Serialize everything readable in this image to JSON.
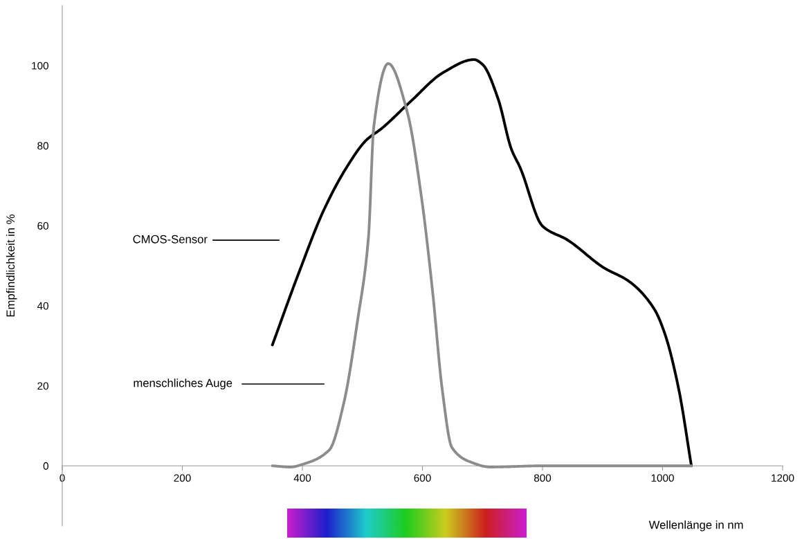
{
  "chart_data": {
    "type": "line",
    "xlabel": "Wellenlänge in nm",
    "ylabel": "Empfindlichkeit in %",
    "xlim": [
      0,
      1200
    ],
    "ylim": [
      -15,
      115
    ],
    "xticks": [
      0,
      200,
      400,
      600,
      800,
      1000,
      1200
    ],
    "yticks": [
      0,
      20,
      40,
      60,
      80,
      100
    ],
    "grid": false,
    "marker": "none",
    "line_style": "solid",
    "series": [
      {
        "name": "CMOS-Sensor",
        "color": "#000000",
        "x": [
          350,
          394,
          436,
          473,
          506,
          533,
          580,
          635,
          686,
          700,
          726,
          748,
          763,
          800,
          842,
          902,
          944,
          986,
          1004,
          1027,
          1048
        ],
        "values": [
          30.2,
          48.2,
          64,
          74.4,
          81.3,
          84.4,
          91,
          98.3,
          101.5,
          100.3,
          91.7,
          79.2,
          74.4,
          59.9,
          56.4,
          49.5,
          46.1,
          39.2,
          32.9,
          19.1,
          0
        ]
      },
      {
        "name": "menschliches Auge",
        "color": "#8c8c8c",
        "x": [
          350,
          380,
          403,
          445,
          469,
          492,
          510,
          519,
          543,
          575,
          598,
          617,
          633,
          649,
          681,
          713,
          800,
          1048
        ],
        "values": [
          0,
          -0.3,
          0.5,
          4,
          15.7,
          36.4,
          57,
          84.8,
          100.5,
          88.2,
          67.5,
          43.4,
          19,
          4.6,
          0.9,
          -0.3,
          0,
          0
        ]
      }
    ]
  }
}
